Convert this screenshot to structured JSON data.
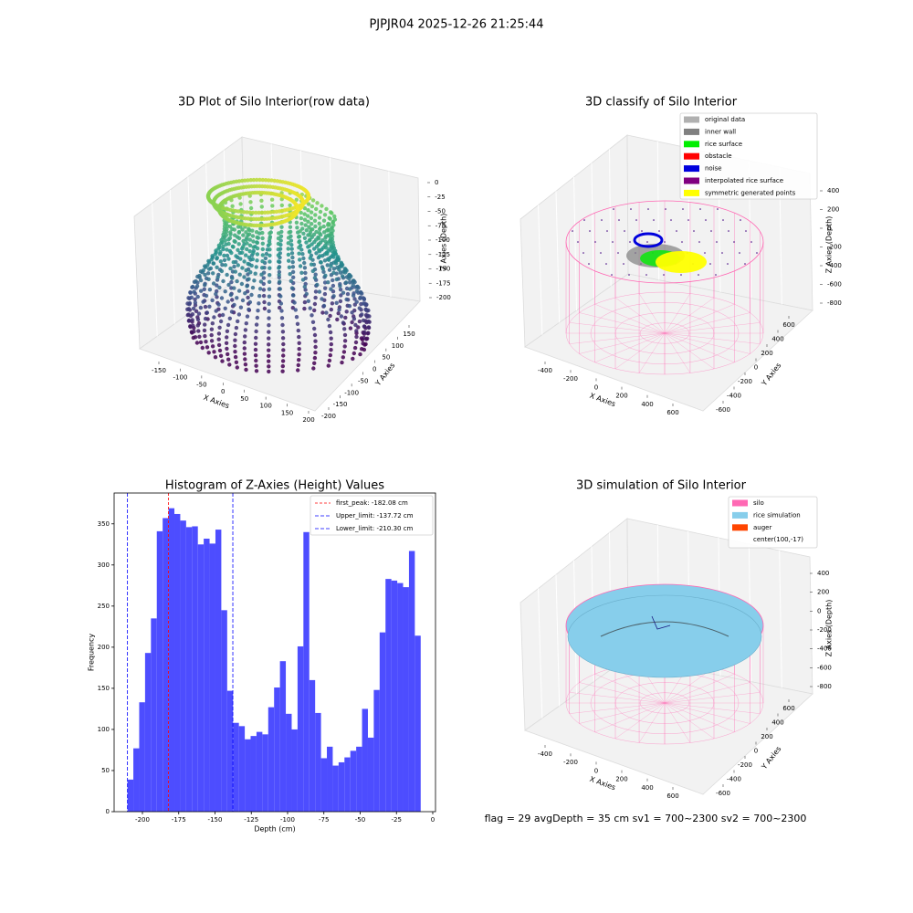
{
  "title": "PJPJR04 2025-12-26 21:25:44",
  "footer": "flag = 29  avgDepth = 35 cm    sv1 = 700~2300  sv2 = 700~2300",
  "chart_data": [
    {
      "type": "scatter3d",
      "title": "3D Plot of Silo Interior(row data)",
      "xlabel": "X Axies",
      "ylabel": "Y Axies",
      "zlabel": "Z Axies (Depth)",
      "xticks": [
        -150,
        -100,
        -50,
        0,
        50,
        100,
        150,
        200
      ],
      "yticks": [
        -200,
        -150,
        -100,
        -50,
        0,
        50,
        100,
        150
      ],
      "zticks": [
        0,
        -25,
        -50,
        -75,
        -100,
        -125,
        -150,
        -175,
        -200
      ]
    },
    {
      "type": "scatter3d",
      "title": "3D classify of Silo Interior",
      "xlabel": "X Axies",
      "ylabel": "Y Axies",
      "zlabel": "Z Axies (Depth)",
      "xticks": [
        -400,
        -200,
        0,
        200,
        400,
        600
      ],
      "yticks": [
        -600,
        -400,
        -200,
        0,
        200,
        400,
        600
      ],
      "zticks": [
        400,
        200,
        0,
        -200,
        -400,
        -600,
        -800
      ],
      "legend": [
        {
          "name": "original data",
          "color": "#b0b0b0"
        },
        {
          "name": "inner wall",
          "color": "#808080"
        },
        {
          "name": "rice surface",
          "color": "#00ee00"
        },
        {
          "name": "obstacle",
          "color": "#ff0000"
        },
        {
          "name": "noise",
          "color": "#0000dd"
        },
        {
          "name": "interpolated rice surface",
          "color": "#800080"
        },
        {
          "name": "symmetric generated points",
          "color": "#ffff00"
        }
      ]
    },
    {
      "type": "histogram",
      "title": "Histogram of Z-Axies (Height) Values",
      "xlabel": "Depth (cm)",
      "ylabel": "Frequency",
      "color": "#4d4dff",
      "bins": [
        -210.3,
        -206.26,
        -202.22,
        -198.18,
        -194.14,
        -190.1,
        -186.06,
        -182.02,
        -177.98,
        -173.94,
        -169.9,
        -165.86,
        -161.82,
        -157.78,
        -153.74,
        -149.7,
        -145.66,
        -141.62,
        -137.58,
        -133.54,
        -129.5,
        -125.46,
        -121.42,
        -117.38,
        -113.34,
        -109.3,
        -105.26,
        -101.22,
        -97.18,
        -93.14,
        -89.1,
        -85.06,
        -81.02,
        -76.98,
        -72.94,
        -68.9,
        -64.86,
        -60.82,
        -56.78,
        -52.74,
        -48.7,
        -44.66,
        -40.62,
        -36.58,
        -32.54,
        -28.5,
        -24.46,
        -20.42,
        -16.38,
        -12.34,
        -8.3
      ],
      "values": [
        39,
        77,
        133,
        193,
        235,
        341,
        357,
        369,
        362,
        354,
        346,
        347,
        325,
        332,
        326,
        343,
        245,
        147,
        108,
        104,
        88,
        92,
        97,
        94,
        127,
        151,
        183,
        119,
        100,
        201,
        340,
        160,
        120,
        65,
        79,
        56,
        60,
        66,
        74,
        79,
        125,
        90,
        148,
        218,
        283,
        281,
        278,
        273,
        317,
        214
      ],
      "xlim": [
        -219.5,
        1.9
      ],
      "ylim": [
        0,
        387.5
      ],
      "xticks": [
        -200,
        -175,
        -150,
        -125,
        -100,
        -75,
        -50,
        -25,
        0
      ],
      "yticks": [
        0,
        50,
        100,
        150,
        200,
        250,
        300,
        350
      ],
      "vlines": [
        {
          "name": "first_peak: -182.08 cm",
          "value": -182.08,
          "color": "#ff0000"
        },
        {
          "name": "Upper_limit: -137.72 cm",
          "value": -137.72,
          "color": "#0000ff"
        },
        {
          "name": "Lower_limit: -210.30 cm",
          "value": -210.3,
          "color": "#0000ff"
        }
      ]
    },
    {
      "type": "scatter3d",
      "title": "3D simulation of Silo Interior",
      "xlabel": "X Axies",
      "ylabel": "Y Axies",
      "zlabel": "Z Axies (Depth)",
      "xticks": [
        -400,
        -200,
        0,
        200,
        400,
        600
      ],
      "yticks": [
        -600,
        -400,
        -200,
        0,
        200,
        400,
        600
      ],
      "zticks": [
        400,
        200,
        0,
        -200,
        -400,
        -600,
        -800
      ],
      "legend": [
        {
          "name": "silo",
          "color": "#ff69b4"
        },
        {
          "name": "rice simulation",
          "color": "#87ceeb"
        },
        {
          "name": "auger",
          "color": "#ff4500"
        },
        {
          "name": "center(100,-17)"
        }
      ]
    }
  ]
}
